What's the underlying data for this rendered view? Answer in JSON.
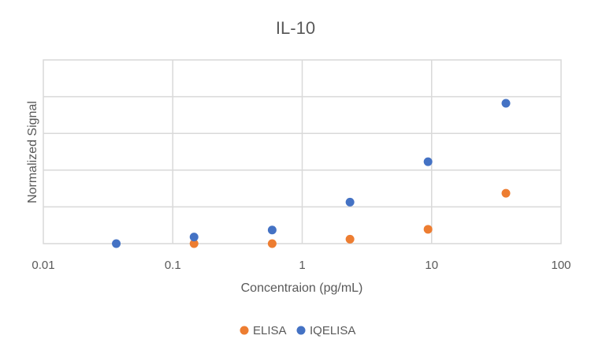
{
  "chart_data": {
    "type": "scatter",
    "title": "IL-10",
    "xlabel": "Concentraion (pg/mL)",
    "ylabel": "Normalized Signal",
    "x_scale": "log",
    "xlim": [
      0.01,
      100
    ],
    "ylim": [
      0,
      5
    ],
    "x_ticks": [
      "0.01",
      "0.1",
      "1",
      "10",
      "100"
    ],
    "y_ticks_labeled": false,
    "grid": true,
    "legend_position": "bottom",
    "colors": {
      "ELISA": "#ed7d31",
      "IQELISA": "#4472c4"
    },
    "series": [
      {
        "name": "ELISA",
        "points": [
          {
            "x": 0.146,
            "y": 0.0
          },
          {
            "x": 0.586,
            "y": 0.0
          },
          {
            "x": 2.34,
            "y": 0.12
          },
          {
            "x": 9.38,
            "y": 0.39
          },
          {
            "x": 37.5,
            "y": 1.37
          }
        ]
      },
      {
        "name": "IQELISA",
        "points": [
          {
            "x": 0.0366,
            "y": 0.0
          },
          {
            "x": 0.146,
            "y": 0.18
          },
          {
            "x": 0.586,
            "y": 0.37
          },
          {
            "x": 2.34,
            "y": 1.13
          },
          {
            "x": 9.38,
            "y": 2.23
          },
          {
            "x": 37.5,
            "y": 3.82
          }
        ]
      }
    ]
  }
}
